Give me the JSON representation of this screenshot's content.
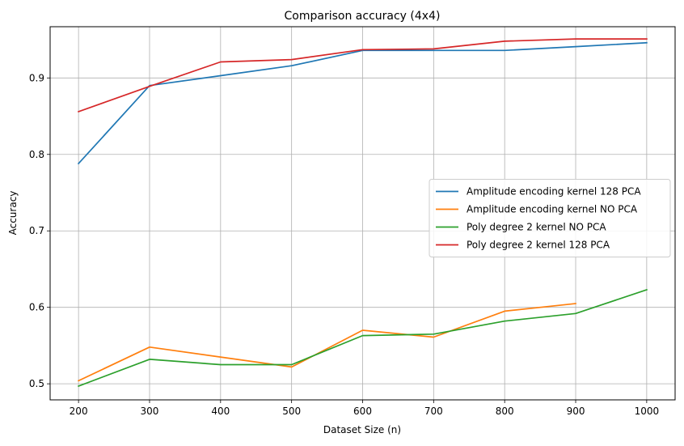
{
  "chart_data": {
    "type": "line",
    "title": "Comparison accuracy (4x4)",
    "xlabel": "Dataset Size (n)",
    "ylabel": "Accuracy",
    "xlim": [
      160,
      1040
    ],
    "ylim": [
      0.479,
      0.967
    ],
    "xticks": [
      200,
      300,
      400,
      500,
      600,
      700,
      800,
      900,
      1000
    ],
    "yticks": [
      0.5,
      0.6,
      0.7,
      0.8,
      0.9
    ],
    "ytick_labels": [
      "0.5",
      "0.6",
      "0.7",
      "0.8",
      "0.9"
    ],
    "grid": true,
    "legend_position": "center-right",
    "series": [
      {
        "name": "Amplitude encoding kernel 128 PCA",
        "color": "#1f77b4",
        "x": [
          200,
          300,
          400,
          500,
          600,
          700,
          800,
          900,
          1000
        ],
        "y": [
          0.788,
          0.89,
          0.903,
          0.916,
          0.936,
          0.936,
          0.936,
          0.941,
          0.946
        ]
      },
      {
        "name": "Amplitude encoding kernel NO PCA",
        "color": "#ff7f0e",
        "x": [
          200,
          300,
          400,
          500,
          600,
          700,
          800,
          900
        ],
        "y": [
          0.504,
          0.548,
          0.535,
          0.522,
          0.57,
          0.561,
          0.595,
          0.605
        ]
      },
      {
        "name": "Poly degree 2 kernel NO PCA",
        "color": "#2ca02c",
        "x": [
          200,
          300,
          400,
          500,
          600,
          700,
          800,
          900,
          1000
        ],
        "y": [
          0.497,
          0.532,
          0.525,
          0.525,
          0.563,
          0.565,
          0.582,
          0.592,
          0.623
        ]
      },
      {
        "name": "Poly degree 2 kernel 128 PCA",
        "color": "#d62728",
        "x": [
          200,
          300,
          400,
          500,
          600,
          700,
          800,
          900,
          1000
        ],
        "y": [
          0.856,
          0.889,
          0.921,
          0.924,
          0.937,
          0.938,
          0.948,
          0.951,
          0.951
        ]
      }
    ]
  }
}
